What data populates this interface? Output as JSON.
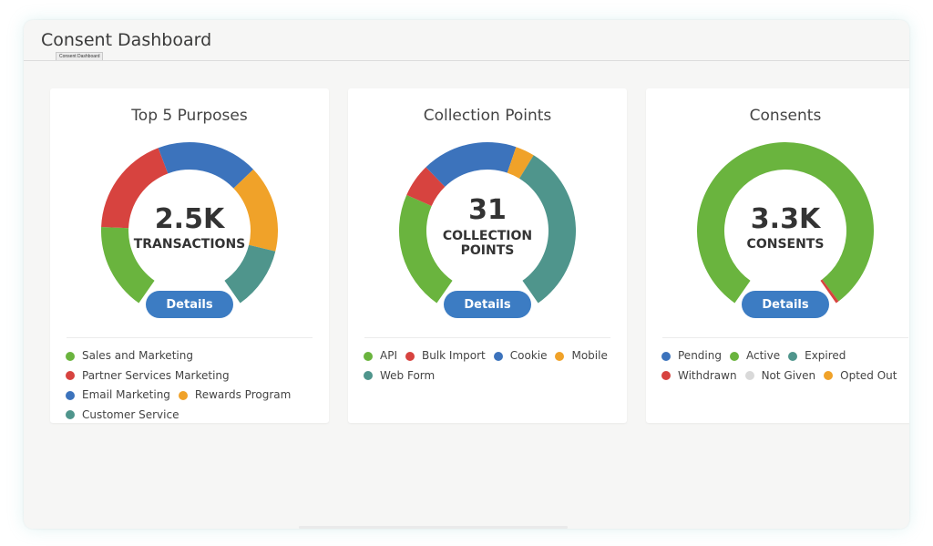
{
  "header": {
    "title": "Consent Dashboard",
    "breadcrumb": "Consent Dashboard"
  },
  "cards": [
    {
      "title": "Top 5 Purposes",
      "value": "2.5K",
      "label_lines": [
        "TRANSACTIONS"
      ],
      "button": "Details",
      "legend": [
        {
          "label": "Sales and Marketing",
          "color": "#6ab43e"
        },
        {
          "label": "Partner Services Marketing",
          "color": "#d7433f"
        },
        {
          "label": "Email Marketing",
          "color": "#3c73bc"
        },
        {
          "label": "Rewards Program",
          "color": "#f0a229"
        },
        {
          "label": "Customer Service",
          "color": "#4f958c"
        }
      ],
      "legend_breaks": [
        1,
        2,
        4
      ]
    },
    {
      "title": "Collection Points",
      "value": "31",
      "label_lines": [
        "COLLECTION",
        "POINTS"
      ],
      "button": "Details",
      "legend": [
        {
          "label": "API",
          "color": "#6ab43e"
        },
        {
          "label": "Bulk Import",
          "color": "#d7433f"
        },
        {
          "label": "Cookie",
          "color": "#3c73bc"
        },
        {
          "label": "Mobile",
          "color": "#f0a229"
        },
        {
          "label": "Web Form",
          "color": "#4f958c"
        }
      ],
      "legend_breaks": [
        4
      ]
    },
    {
      "title": "Consents",
      "value": "3.3K",
      "label_lines": [
        "CONSENTS"
      ],
      "button": "Details",
      "legend": [
        {
          "label": "Pending",
          "color": "#3c73bc"
        },
        {
          "label": "Active",
          "color": "#6ab43e"
        },
        {
          "label": "Expired",
          "color": "#4f958c"
        },
        {
          "label": "Withdrawn",
          "color": "#d7433f"
        },
        {
          "label": "Not Given",
          "color": "#d9d9d9"
        },
        {
          "label": "Opted Out",
          "color": "#f0a229"
        }
      ],
      "legend_breaks": [
        3
      ]
    }
  ],
  "chart_data": [
    {
      "type": "pie",
      "title": "Top 5 Purposes",
      "categories": [
        "Sales and Marketing",
        "Partner Services Marketing",
        "Email Marketing",
        "Rewards Program",
        "Customer Service"
      ],
      "values": [
        18,
        21,
        21,
        18,
        13
      ],
      "colors": [
        "#6ab43e",
        "#d7433f",
        "#3c73bc",
        "#f0a229",
        "#4f958c"
      ],
      "total_label": "2.5K"
    },
    {
      "type": "pie",
      "title": "Collection Points",
      "categories": [
        "API",
        "Bulk Import",
        "Cookie",
        "Mobile",
        "Web Form"
      ],
      "values": [
        25,
        7,
        20,
        4,
        36
      ],
      "colors": [
        "#6ab43e",
        "#d7433f",
        "#3c73bc",
        "#f0a229",
        "#4f958c"
      ],
      "total_label": "31"
    },
    {
      "type": "pie",
      "title": "Consents",
      "categories": [
        "Pending",
        "Active",
        "Expired",
        "Withdrawn",
        "Not Given",
        "Opted Out"
      ],
      "values": [
        0,
        99.3,
        0,
        0.7,
        0,
        0
      ],
      "colors": [
        "#3c73bc",
        "#6ab43e",
        "#4f958c",
        "#d7433f",
        "#d9d9d9",
        "#f0a229"
      ],
      "total_label": "3.3K"
    }
  ]
}
